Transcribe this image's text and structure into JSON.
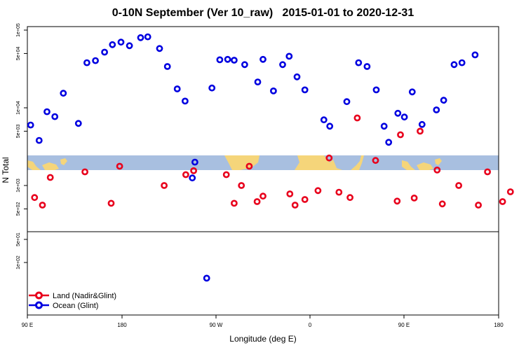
{
  "chart_data": {
    "type": "scatter",
    "title": "0-10N September (Ver 10_raw)   2015-01-01 to 2020-12-31",
    "xlabel": "Longitude (deg E)",
    "ylabel": "N Total",
    "x_tick_labels": [
      "90 E",
      "180",
      "90 W",
      "0",
      "90 E",
      "180"
    ],
    "y_tick_labels_upper": [
      "1e+05",
      "5e+04",
      "1e+04",
      "5e+03",
      "1e+03",
      "5e+02"
    ],
    "y_tick_labels_lower": [
      "1e+02",
      "5e+01"
    ],
    "legend": {
      "position": "bottom-left"
    },
    "colors": {
      "land": "#e8001c",
      "ocean": "#0000e0",
      "band": "#a8bfe0",
      "landmass": "#f5d57a"
    },
    "series": [
      {
        "name": "Land (Nadir&Glint)",
        "color": "#e8001c",
        "points": [
          {
            "lon": 95.5,
            "n": 700
          },
          {
            "lon": 101.5,
            "n": 560
          },
          {
            "lon": 107.5,
            "n": 1270
          },
          {
            "lon": 134,
            "n": 1500
          },
          {
            "lon": 154,
            "n": 590
          },
          {
            "lon": 160.5,
            "n": 1770
          },
          {
            "lon": 194.5,
            "n": 1000
          },
          {
            "lon": 211,
            "n": 1380
          },
          {
            "lon": 217,
            "n": 1550
          },
          {
            "lon": 242,
            "n": 1380
          },
          {
            "lon": 248,
            "n": 590
          },
          {
            "lon": 253.5,
            "n": 1000
          },
          {
            "lon": 259.5,
            "n": 1770
          },
          {
            "lon": 265.5,
            "n": 620
          },
          {
            "lon": 270,
            "n": 730
          },
          {
            "lon": 290.5,
            "n": 780
          },
          {
            "lon": 294.5,
            "n": 560
          },
          {
            "lon": 302,
            "n": 660
          },
          {
            "lon": 312,
            "n": 860
          },
          {
            "lon": 320.5,
            "n": 2260
          },
          {
            "lon": 328,
            "n": 820
          },
          {
            "lon": 336.5,
            "n": 700
          },
          {
            "lon": 342,
            "n": 7400
          },
          {
            "lon": 356,
            "n": 2100
          },
          {
            "lon": 372.5,
            "n": 630
          },
          {
            "lon": 375,
            "n": 4500
          },
          {
            "lon": 385.5,
            "n": 690
          },
          {
            "lon": 390,
            "n": 5000
          },
          {
            "lon": 407,
            "n": 580
          },
          {
            "lon": 403,
            "n": 1580
          },
          {
            "lon": 419.5,
            "n": 1000
          },
          {
            "lon": 434.5,
            "n": 560
          },
          {
            "lon": 441.5,
            "n": 1500
          },
          {
            "lon": 453,
            "n": 620
          },
          {
            "lon": 459,
            "n": 830
          }
        ]
      },
      {
        "name": "Ocean (Glint)",
        "color": "#0000e0",
        "points": [
          {
            "lon": 92.5,
            "n": 6000
          },
          {
            "lon": 99,
            "n": 3800
          },
          {
            "lon": 105,
            "n": 8900
          },
          {
            "lon": 111,
            "n": 7700
          },
          {
            "lon": 117.5,
            "n": 15400
          },
          {
            "lon": 129,
            "n": 6300
          },
          {
            "lon": 135.5,
            "n": 38000
          },
          {
            "lon": 142,
            "n": 40500
          },
          {
            "lon": 149,
            "n": 52000
          },
          {
            "lon": 155,
            "n": 65000
          },
          {
            "lon": 161.5,
            "n": 70000
          },
          {
            "lon": 168,
            "n": 63000
          },
          {
            "lon": 176.5,
            "n": 80000
          },
          {
            "lon": 182,
            "n": 82000
          },
          {
            "lon": 191,
            "n": 58000
          },
          {
            "lon": 197,
            "n": 34000
          },
          {
            "lon": 204.5,
            "n": 17500
          },
          {
            "lon": 210.5,
            "n": 12200
          },
          {
            "lon": 216,
            "n": 1250
          },
          {
            "lon": 218,
            "n": 2000
          },
          {
            "lon": 227,
            "n": 160
          },
          {
            "lon": 231,
            "n": 18000
          },
          {
            "lon": 237,
            "n": 41500
          },
          {
            "lon": 243,
            "n": 42000
          },
          {
            "lon": 248,
            "n": 41000
          },
          {
            "lon": 256,
            "n": 36000
          },
          {
            "lon": 266,
            "n": 21500
          },
          {
            "lon": 270,
            "n": 42000
          },
          {
            "lon": 278,
            "n": 16500
          },
          {
            "lon": 285,
            "n": 36000
          },
          {
            "lon": 290,
            "n": 46000
          },
          {
            "lon": 296,
            "n": 25000
          },
          {
            "lon": 302,
            "n": 17000
          },
          {
            "lon": 316.5,
            "n": 7000
          },
          {
            "lon": 321,
            "n": 5800
          },
          {
            "lon": 334,
            "n": 12000
          },
          {
            "lon": 343,
            "n": 38000
          },
          {
            "lon": 349.5,
            "n": 34000
          },
          {
            "lon": 356.5,
            "n": 17000
          },
          {
            "lon": 362.5,
            "n": 5800
          },
          {
            "lon": 366,
            "n": 3600
          },
          {
            "lon": 373,
            "n": 8500
          },
          {
            "lon": 378,
            "n": 7600
          },
          {
            "lon": 384,
            "n": 16000
          },
          {
            "lon": 391.5,
            "n": 6100
          },
          {
            "lon": 402.5,
            "n": 9400
          },
          {
            "lon": 408,
            "n": 12500
          },
          {
            "lon": 416,
            "n": 36000
          },
          {
            "lon": 422,
            "n": 38000
          },
          {
            "lon": 432,
            "n": 48000
          }
        ]
      }
    ]
  }
}
